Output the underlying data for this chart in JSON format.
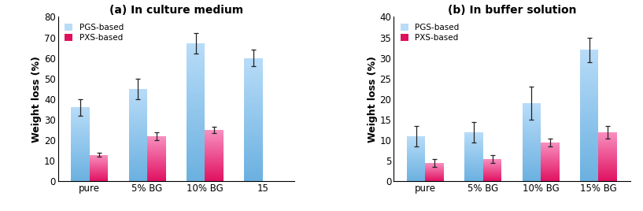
{
  "title_a": "(a) In culture medium",
  "title_b": "(b) In buffer solution",
  "ylabel": "Weight loss (%)",
  "categories_a": [
    "pure",
    "5% BG",
    "10% BG",
    "15"
  ],
  "categories_b": [
    "pure",
    "5% BG",
    "10% BG",
    "15% BG"
  ],
  "pgs_a": [
    36,
    45,
    67,
    60
  ],
  "pxs_a": [
    13,
    22,
    25,
    0
  ],
  "pgs_a_err": [
    4,
    5,
    5,
    4
  ],
  "pxs_a_err": [
    1,
    2,
    1.5,
    0
  ],
  "pgs_b": [
    11,
    12,
    19,
    32
  ],
  "pxs_b": [
    4.5,
    5.5,
    9.5,
    12
  ],
  "pgs_b_err": [
    2.5,
    2.5,
    4,
    3
  ],
  "pxs_b_err": [
    1,
    1,
    1,
    1.5
  ],
  "ylim_a": [
    0,
    80
  ],
  "ylim_b": [
    0,
    40
  ],
  "yticks_a": [
    0,
    10,
    20,
    30,
    40,
    50,
    60,
    70,
    80
  ],
  "yticks_b": [
    0,
    5,
    10,
    15,
    20,
    25,
    30,
    35,
    40
  ],
  "pgs_color_light": "#b8dcf8",
  "pgs_color_dark": "#6ab0e0",
  "pxs_color_light": "#f890c0",
  "pxs_color_dark": "#e01060",
  "legend_pgs": "PGS-based",
  "legend_pxs": "PXS-based",
  "bar_width": 0.32
}
